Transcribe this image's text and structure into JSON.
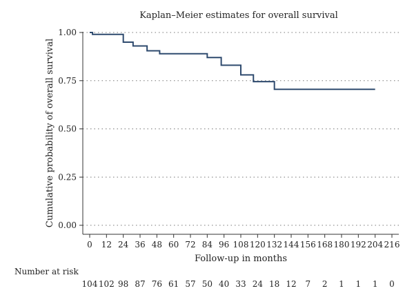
{
  "chart_data": {
    "type": "line",
    "step": true,
    "title": "Kaplan–Meier estimates for overall survival",
    "xlabel": "Follow-up in months",
    "ylabel": "Cumulative probability of overall survival",
    "xlim": [
      0,
      216
    ],
    "ylim": [
      0,
      1
    ],
    "x_ticks": [
      0,
      12,
      24,
      36,
      48,
      60,
      72,
      84,
      96,
      108,
      120,
      132,
      144,
      156,
      168,
      180,
      192,
      204,
      216
    ],
    "y_ticks": [
      0,
      0.25,
      0.5,
      0.75,
      1
    ],
    "y_tick_labels": [
      "0.00",
      "0.25",
      "0.50",
      "0.75",
      "1.00"
    ],
    "grid": {
      "horizontal": true,
      "style": "dotted"
    },
    "line_color": "#2e4a6e",
    "series": [
      {
        "x": [
          0,
          2,
          24,
          31,
          41,
          50,
          84,
          94,
          108,
          117,
          132,
          204
        ],
        "y": [
          1.0,
          0.99,
          0.95,
          0.93,
          0.905,
          0.89,
          0.87,
          0.83,
          0.78,
          0.745,
          0.705,
          0.705
        ]
      }
    ],
    "number_at_risk": {
      "label": "Number at risk",
      "values": [
        104,
        102,
        98,
        87,
        76,
        61,
        57,
        50,
        40,
        33,
        24,
        18,
        12,
        7,
        2,
        1,
        1,
        1,
        0
      ]
    }
  }
}
